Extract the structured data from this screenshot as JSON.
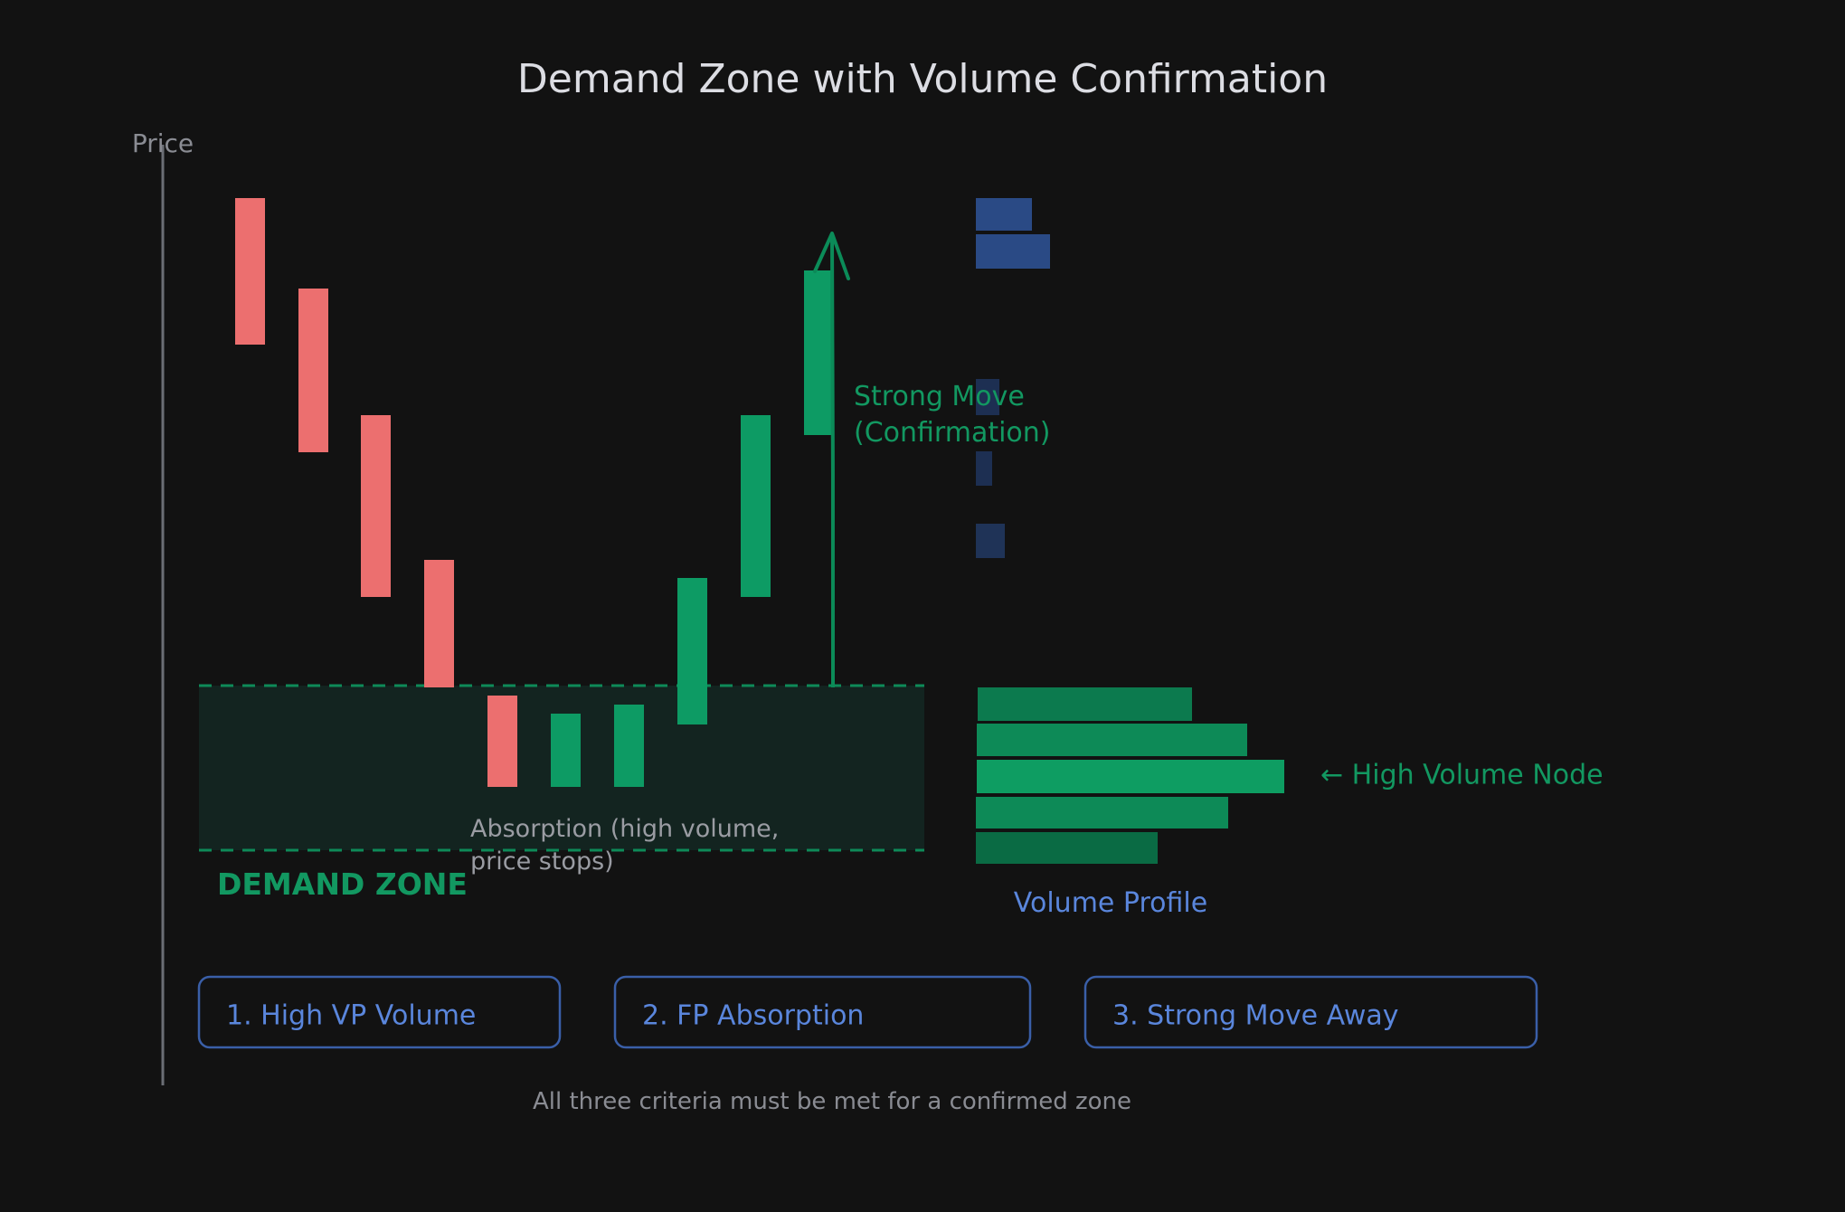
{
  "title": "Demand Zone with Volume Confirmation",
  "y_axis_label": "Price",
  "demand_zone": {
    "label": "DEMAND ZONE"
  },
  "annotations": {
    "absorption": [
      "Absorption (high volume,",
      "price stops)"
    ],
    "strong_move": [
      "Strong Move",
      "(Confirmation)"
    ],
    "high_volume_node": "← High Volume Node",
    "volume_profile": "Volume Profile"
  },
  "criteria": [
    "1. High VP Volume",
    "2. FP Absorption",
    "3. Strong Move Away"
  ],
  "footer": "All three criteria must be met for a confirmed zone",
  "candles": [
    {
      "direction": "bearish"
    },
    {
      "direction": "bearish"
    },
    {
      "direction": "bearish"
    },
    {
      "direction": "bearish"
    },
    {
      "direction": "bearish"
    },
    {
      "direction": "bullish"
    },
    {
      "direction": "bullish"
    },
    {
      "direction": "bullish"
    },
    {
      "direction": "bullish"
    },
    {
      "direction": "bullish"
    }
  ],
  "colors": {
    "background": "#121212",
    "title": "#dcdde3",
    "axis": "#6b6e75",
    "bearish": "#ec6f6f",
    "bullish": "#0d9b64",
    "zone_fill": "#132420",
    "zone_border": "#0e8a58",
    "zone_label": "#129861",
    "muted_text": "#9a9ca3",
    "blue_text": "#5a86dc",
    "box_border": "#3a5fa8",
    "profile_upper": "#2a4a85",
    "profile_lower": "#0c7a4e",
    "profile_node": "#0e9d62"
  }
}
